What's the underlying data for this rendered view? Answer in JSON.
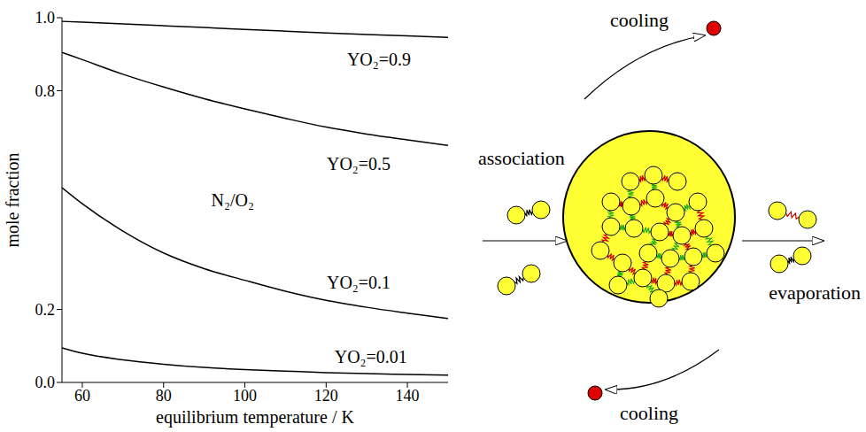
{
  "chart_data": {
    "type": "line",
    "xlabel": "equilibrium temperature / K",
    "ylabel": "mole fraction",
    "annotation": "N₂/O₂",
    "xlim": [
      55,
      150
    ],
    "xticks": [
      60,
      80,
      100,
      120,
      140
    ],
    "ylim": [
      0,
      1
    ],
    "yticks": [
      {
        "value": 0,
        "label": "0.0"
      },
      {
        "value": 0.2,
        "label": "0.2"
      },
      {
        "value": 0.8,
        "label": "0.8"
      },
      {
        "value": 1,
        "label": "1.0"
      }
    ],
    "grid": false,
    "x": [
      55,
      60,
      70,
      80,
      90,
      100,
      110,
      120,
      130,
      140,
      150
    ],
    "series": [
      {
        "name": "YO₂=0.9",
        "color": "#000000",
        "values": [
          0.99,
          0.988,
          0.983,
          0.978,
          0.973,
          0.968,
          0.963,
          0.958,
          0.954,
          0.95,
          0.946
        ]
      },
      {
        "name": "YO₂=0.5",
        "color": "#000000",
        "values": [
          0.905,
          0.885,
          0.845,
          0.81,
          0.778,
          0.75,
          0.724,
          0.7,
          0.681,
          0.665,
          0.65
        ]
      },
      {
        "name": "YO₂=0.1",
        "color": "#000000",
        "values": [
          0.534,
          0.49,
          0.415,
          0.355,
          0.312,
          0.28,
          0.25,
          0.225,
          0.206,
          0.19,
          0.175
        ]
      },
      {
        "name": "YO₂=0.01",
        "color": "#000000",
        "values": [
          0.095,
          0.08,
          0.062,
          0.05,
          0.041,
          0.035,
          0.031,
          0.027,
          0.024,
          0.022,
          0.02
        ]
      }
    ]
  },
  "diagram": {
    "cooling_top": "cooling",
    "cooling_bottom": "cooling",
    "association": "association",
    "evaporation": "evaporation"
  }
}
